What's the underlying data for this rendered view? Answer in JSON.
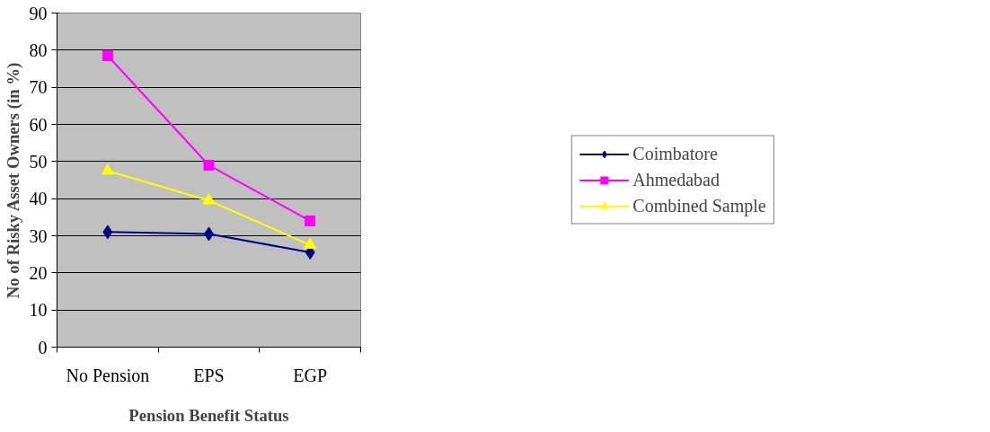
{
  "chart_data": {
    "type": "line",
    "xlabel": "Pension Benefit Status",
    "ylabel": "No of Risky Asset Owners (in %)",
    "categories": [
      "No Pension",
      "EPS",
      "EGP"
    ],
    "series": [
      {
        "name": "Coimbatore",
        "color": "#000080",
        "values": [
          31,
          30.5,
          25.5
        ],
        "marker": "diamond"
      },
      {
        "name": "Ahmedabad",
        "color": "#ff00ff",
        "values": [
          78.5,
          49,
          34
        ],
        "marker": "square"
      },
      {
        "name": "Combined Sample",
        "color": "#ffff00",
        "values": [
          47.5,
          39.5,
          27.5
        ],
        "marker": "triangle"
      }
    ],
    "ylim": [
      0,
      90
    ],
    "yticks": [
      0,
      10,
      20,
      30,
      40,
      50,
      60,
      70,
      80,
      90
    ],
    "grid": "y",
    "legend": "right",
    "line_style": "solid"
  }
}
